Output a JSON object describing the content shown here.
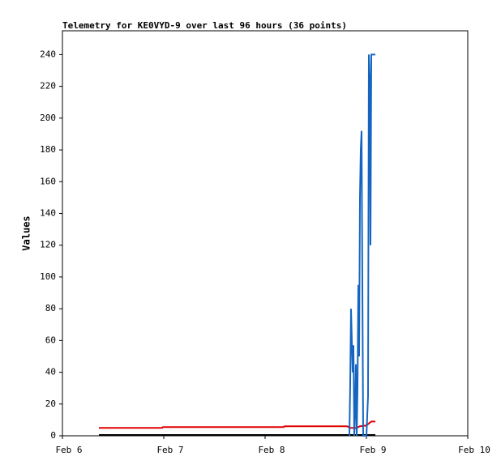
{
  "chart_data": {
    "type": "line",
    "title": "Telemetry for KE0VYD-9 over last 96 hours (36 points)",
    "y_label": "Values",
    "xlim": [
      0,
      4
    ],
    "xticks": [
      {
        "value": 0,
        "label": "Feb 6"
      },
      {
        "value": 1,
        "label": "Feb 7"
      },
      {
        "value": 2,
        "label": "Feb 8"
      },
      {
        "value": 3,
        "label": "Feb 9"
      },
      {
        "value": 4,
        "label": "Feb 10"
      }
    ],
    "ylim": [
      0,
      255
    ],
    "yticks": [
      0,
      20,
      40,
      60,
      80,
      100,
      120,
      140,
      160,
      180,
      200,
      220,
      240
    ],
    "grid": false,
    "series": [
      {
        "color": "#000000",
        "x": [
          0.36,
          3.088
        ],
        "values": [
          0.5,
          0.5
        ]
      },
      {
        "color": "#e00000",
        "x": [
          0.36,
          0.984,
          0.992,
          2.184,
          2.192,
          2.808,
          2.84,
          2.904,
          2.936,
          3.0,
          3.048,
          3.088
        ],
        "values": [
          5,
          5,
          5.5,
          5.5,
          6,
          6,
          5,
          5,
          6,
          6.5,
          9,
          9
        ]
      },
      {
        "color": "#1565c0",
        "x": [
          2.832,
          2.84,
          2.848,
          2.864,
          2.872,
          2.88,
          2.888,
          2.896,
          2.904,
          2.912,
          2.92,
          2.928,
          2.936,
          2.944,
          2.952,
          2.96,
          2.968,
          2.976,
          3.0,
          3.016,
          3.024,
          3.032,
          3.04,
          3.048,
          3.088
        ],
        "values": [
          0,
          33,
          80,
          40,
          57,
          0,
          15,
          45,
          0,
          30,
          95,
          50,
          150,
          180,
          192,
          95,
          0,
          0,
          0,
          25,
          240,
          225,
          120,
          240,
          240
        ]
      }
    ]
  }
}
